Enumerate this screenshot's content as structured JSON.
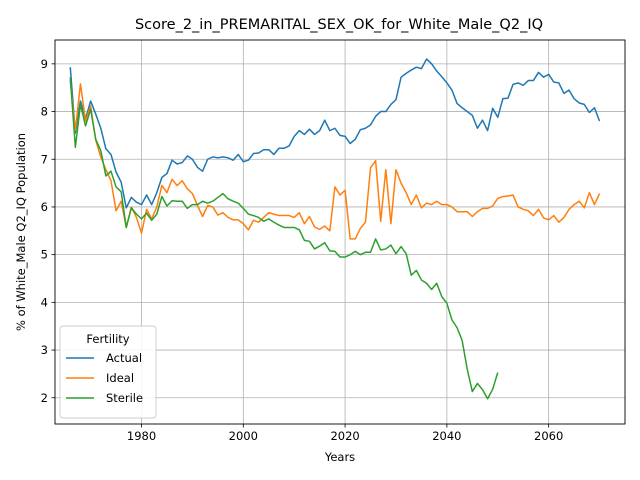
{
  "chart_data": {
    "type": "line",
    "title": "Score_2_in_PREMARITAL_SEX_OK_for_White_Male_Q2_IQ",
    "xlabel": "Years",
    "ylabel": "% of White_Male Q2_IQ Population",
    "xlim": [
      1963,
      2075
    ],
    "ylim": [
      1.45,
      9.5
    ],
    "xticks": [
      1980,
      2000,
      2020,
      2040,
      2060
    ],
    "yticks": [
      2,
      3,
      4,
      5,
      6,
      7,
      8,
      9
    ],
    "grid": true,
    "legend": {
      "title": "Fertility",
      "placement": "lower-left"
    },
    "series": [
      {
        "name": "Actual",
        "color": "#1f77b4",
        "x": [
          1966,
          1967,
          1968,
          1969,
          1970,
          1971,
          1972,
          1973,
          1974,
          1975,
          1976,
          1977,
          1978,
          1979,
          1980,
          1981,
          1982,
          1983,
          1984,
          1985,
          1986,
          1987,
          1988,
          1989,
          1990,
          1991,
          1992,
          1993,
          1994,
          1995,
          1996,
          1997,
          1998,
          1999,
          2000,
          2001,
          2002,
          2003,
          2004,
          2005,
          2006,
          2007,
          2008,
          2009,
          2010,
          2011,
          2012,
          2013,
          2014,
          2015,
          2016,
          2017,
          2018,
          2019,
          2020,
          2021,
          2022,
          2023,
          2024,
          2025,
          2026,
          2027,
          2028,
          2029,
          2030,
          2031,
          2032,
          2033,
          2034,
          2035,
          2036,
          2037,
          2038,
          2039,
          2040,
          2041,
          2042,
          2043,
          2044,
          2045,
          2046,
          2047,
          2048,
          2049,
          2050,
          2051,
          2052,
          2053,
          2054,
          2055,
          2056,
          2057,
          2058,
          2059,
          2060,
          2061,
          2062,
          2063,
          2064,
          2065,
          2066,
          2067,
          2068,
          2069,
          2070
        ],
        "values": [
          8.93,
          7.55,
          8.22,
          7.85,
          8.22,
          7.95,
          7.65,
          7.22,
          7.1,
          6.73,
          6.52,
          5.98,
          6.2,
          6.1,
          6.05,
          6.25,
          6.05,
          6.3,
          6.62,
          6.7,
          6.98,
          6.9,
          6.93,
          7.07,
          7.0,
          6.83,
          6.75,
          7.0,
          7.05,
          7.03,
          7.05,
          7.03,
          6.98,
          7.1,
          6.95,
          6.98,
          7.12,
          7.13,
          7.2,
          7.2,
          7.1,
          7.23,
          7.23,
          7.28,
          7.48,
          7.6,
          7.52,
          7.63,
          7.52,
          7.6,
          7.82,
          7.6,
          7.65,
          7.5,
          7.48,
          7.33,
          7.42,
          7.62,
          7.65,
          7.72,
          7.9,
          8.0,
          8.0,
          8.15,
          8.25,
          8.72,
          8.8,
          8.87,
          8.93,
          8.9,
          9.1,
          9.0,
          8.85,
          8.73,
          8.6,
          8.45,
          8.17,
          8.08,
          8.0,
          7.92,
          7.65,
          7.82,
          7.6,
          8.07,
          7.88,
          8.27,
          8.28,
          8.57,
          8.6,
          8.55,
          8.65,
          8.65,
          8.82,
          8.72,
          8.78,
          8.62,
          8.6,
          8.38,
          8.45,
          8.27,
          8.18,
          8.15,
          7.98,
          8.08,
          7.8
        ]
      },
      {
        "name": "Ideal",
        "color": "#ff7f0e",
        "x": [
          1966,
          1967,
          1968,
          1969,
          1970,
          1971,
          1972,
          1973,
          1974,
          1975,
          1976,
          1977,
          1978,
          1979,
          1980,
          1981,
          1982,
          1983,
          1984,
          1985,
          1986,
          1987,
          1988,
          1989,
          1990,
          1991,
          1992,
          1993,
          1994,
          1995,
          1996,
          1997,
          1998,
          1999,
          2000,
          2001,
          2002,
          2003,
          2004,
          2005,
          2006,
          2007,
          2008,
          2009,
          2010,
          2011,
          2012,
          2013,
          2014,
          2015,
          2016,
          2017,
          2018,
          2019,
          2020,
          2021,
          2022,
          2023,
          2024,
          2025,
          2026,
          2027,
          2028,
          2029,
          2030,
          2031,
          2032,
          2033,
          2034,
          2035,
          2036,
          2037,
          2038,
          2039,
          2040,
          2041,
          2042,
          2043,
          2044,
          2045,
          2046,
          2047,
          2048,
          2049,
          2050,
          2051,
          2052,
          2053,
          2054,
          2055,
          2056,
          2057,
          2058,
          2059,
          2060,
          2061,
          2062,
          2063,
          2064,
          2065,
          2066,
          2067,
          2068,
          2069,
          2070
        ],
        "values": [
          8.65,
          7.6,
          8.58,
          7.8,
          8.12,
          7.4,
          7.05,
          6.78,
          6.55,
          5.92,
          6.12,
          5.57,
          6.0,
          5.78,
          5.45,
          5.95,
          5.75,
          6.0,
          6.45,
          6.3,
          6.58,
          6.45,
          6.55,
          6.38,
          6.28,
          6.03,
          5.8,
          6.03,
          6.0,
          5.83,
          5.88,
          5.78,
          5.73,
          5.73,
          5.65,
          5.52,
          5.72,
          5.68,
          5.78,
          5.88,
          5.85,
          5.82,
          5.82,
          5.82,
          5.78,
          5.88,
          5.65,
          5.8,
          5.58,
          5.53,
          5.6,
          5.5,
          6.42,
          6.25,
          6.35,
          5.33,
          5.33,
          5.55,
          5.68,
          6.82,
          6.97,
          5.7,
          6.78,
          5.65,
          6.78,
          6.5,
          6.3,
          6.05,
          6.25,
          5.98,
          6.08,
          6.05,
          6.12,
          6.05,
          6.05,
          6.0,
          5.9,
          5.9,
          5.9,
          5.8,
          5.9,
          5.97,
          5.97,
          6.02,
          6.18,
          6.22,
          6.23,
          6.25,
          6.0,
          5.95,
          5.92,
          5.82,
          5.95,
          5.77,
          5.73,
          5.82,
          5.68,
          5.78,
          5.95,
          6.05,
          6.12,
          5.98,
          6.3,
          6.05,
          6.28
        ]
      },
      {
        "name": "Sterile",
        "color": "#2ca02c",
        "x": [
          1966,
          1967,
          1968,
          1969,
          1970,
          1971,
          1972,
          1973,
          1974,
          1975,
          1976,
          1977,
          1978,
          1979,
          1980,
          1981,
          1982,
          1983,
          1984,
          1985,
          1986,
          1987,
          1988,
          1989,
          1990,
          1991,
          1992,
          1993,
          1994,
          1995,
          1996,
          1997,
          1998,
          1999,
          2000,
          2001,
          2002,
          2003,
          2004,
          2005,
          2006,
          2007,
          2008,
          2009,
          2010,
          2011,
          2012,
          2013,
          2014,
          2015,
          2016,
          2017,
          2018,
          2019,
          2020,
          2021,
          2022,
          2023,
          2024,
          2025,
          2026,
          2027,
          2028,
          2029,
          2030,
          2031,
          2032,
          2033,
          2034,
          2035,
          2036,
          2037,
          2038,
          2039,
          2040,
          2041,
          2042,
          2043,
          2044,
          2045,
          2046,
          2047,
          2048,
          2049,
          2050
        ],
        "values": [
          8.72,
          7.25,
          8.15,
          7.7,
          8.05,
          7.42,
          7.18,
          6.65,
          6.75,
          6.42,
          6.32,
          5.57,
          5.98,
          5.85,
          5.75,
          5.87,
          5.72,
          5.85,
          6.22,
          6.02,
          6.13,
          6.12,
          6.12,
          5.97,
          6.05,
          6.05,
          6.12,
          6.08,
          6.12,
          6.2,
          6.28,
          6.17,
          6.12,
          6.08,
          5.97,
          5.85,
          5.82,
          5.78,
          5.7,
          5.75,
          5.68,
          5.62,
          5.57,
          5.57,
          5.57,
          5.52,
          5.3,
          5.28,
          5.12,
          5.18,
          5.25,
          5.08,
          5.07,
          4.95,
          4.95,
          5.0,
          5.07,
          5.0,
          5.05,
          5.05,
          5.33,
          5.1,
          5.12,
          5.2,
          5.02,
          5.17,
          5.02,
          4.57,
          4.67,
          4.47,
          4.4,
          4.27,
          4.4,
          4.12,
          3.98,
          3.63,
          3.47,
          3.2,
          2.6,
          2.13,
          2.3,
          2.17,
          1.98,
          2.18,
          2.53
        ]
      }
    ]
  }
}
